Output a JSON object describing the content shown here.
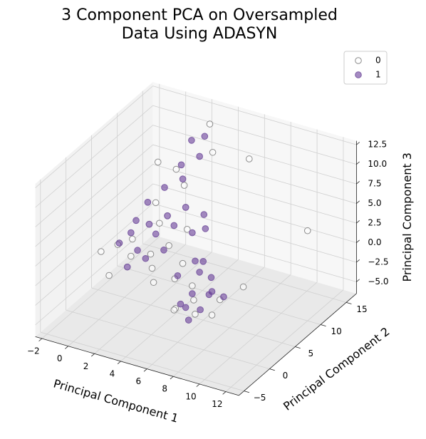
{
  "chart_data": {
    "type": "scatter3d",
    "title": [
      "3 Component PCA on Oversampled",
      "Data Using ADASYN"
    ],
    "xlabel": "Principal Component 1",
    "ylabel": "Principal Component 2",
    "zlabel": "Principal Component 3",
    "xlim": [
      -2.5,
      13
    ],
    "ylim": [
      -6,
      17
    ],
    "zlim": [
      -6.5,
      13
    ],
    "xticks": [
      {
        "value": -2,
        "label": "−2"
      },
      0,
      2,
      4,
      6,
      8,
      10,
      12
    ],
    "yticks": [
      {
        "value": -5,
        "label": "−5"
      },
      0,
      5,
      10,
      15
    ],
    "zticks": [
      {
        "value": -5,
        "label": "−5.0"
      },
      {
        "value": -2.5,
        "label": "−2.5"
      },
      {
        "value": 0,
        "label": "0.0"
      },
      2.5,
      {
        "value": 5,
        "label": "5.0"
      },
      7.5,
      {
        "value": 10,
        "label": "10.0"
      },
      12.5
    ],
    "grid": true,
    "legend": "upper right",
    "series": [
      {
        "name": "0",
        "color": "#ffffff",
        "edgecolor": "#8c8c8c",
        "x": [
          -1,
          0,
          0.5,
          1,
          1.5,
          2,
          2.5,
          3,
          3.5,
          0,
          1,
          2,
          3,
          -0.5,
          1.5,
          2.5,
          4,
          3,
          2,
          1,
          7,
          8,
          9,
          7.5,
          8.5,
          9.5,
          6.5,
          10,
          5,
          6,
          12,
          4,
          3,
          6,
          11
        ],
        "y": [
          3,
          4,
          5,
          4,
          6,
          5,
          7,
          6,
          8,
          2,
          3,
          6,
          9,
          5,
          8,
          4,
          7,
          3,
          10,
          9,
          -3,
          -2,
          -1,
          -1,
          -3,
          0,
          -2,
          -2,
          2,
          1,
          10,
          12,
          14,
          14,
          0
        ],
        "z": [
          0,
          1,
          -1,
          2,
          3,
          0,
          4,
          1,
          5,
          -2,
          -1,
          6,
          7,
          0,
          2,
          -1,
          3,
          -2,
          8,
          9,
          0,
          1,
          -1,
          2,
          0,
          1,
          -1,
          2,
          0,
          3,
          5,
          10,
          12,
          9,
          3
        ]
      },
      {
        "name": "1",
        "color": "#5b2c8f",
        "edgecolor": "#7b5ba3",
        "x": [
          0,
          0.5,
          1,
          1.5,
          2,
          2.5,
          3,
          3.5,
          1,
          2,
          3,
          0.5,
          1.5,
          2.5,
          4,
          4.5,
          5,
          2,
          3,
          1,
          7,
          7.5,
          8,
          8.5,
          9,
          9.5,
          8,
          7,
          6,
          6.5,
          5,
          6,
          7,
          2,
          3
        ],
        "y": [
          4,
          5,
          5,
          6,
          6,
          7,
          7,
          8,
          3,
          4,
          5,
          6,
          9,
          10,
          8,
          9,
          6,
          11,
          12,
          7,
          -2,
          -1,
          -3,
          -2,
          -1,
          0,
          1,
          -1,
          0,
          3,
          8,
          5,
          4,
          13,
          13
        ],
        "z": [
          1,
          2,
          0,
          3,
          2,
          4,
          3,
          5,
          -1,
          0,
          1,
          3,
          6,
          7,
          2,
          4,
          0,
          8,
          9,
          5,
          0,
          1,
          -1,
          0,
          2,
          1,
          0,
          -1,
          2,
          1,
          3,
          1,
          0,
          10,
          11
        ]
      }
    ]
  }
}
